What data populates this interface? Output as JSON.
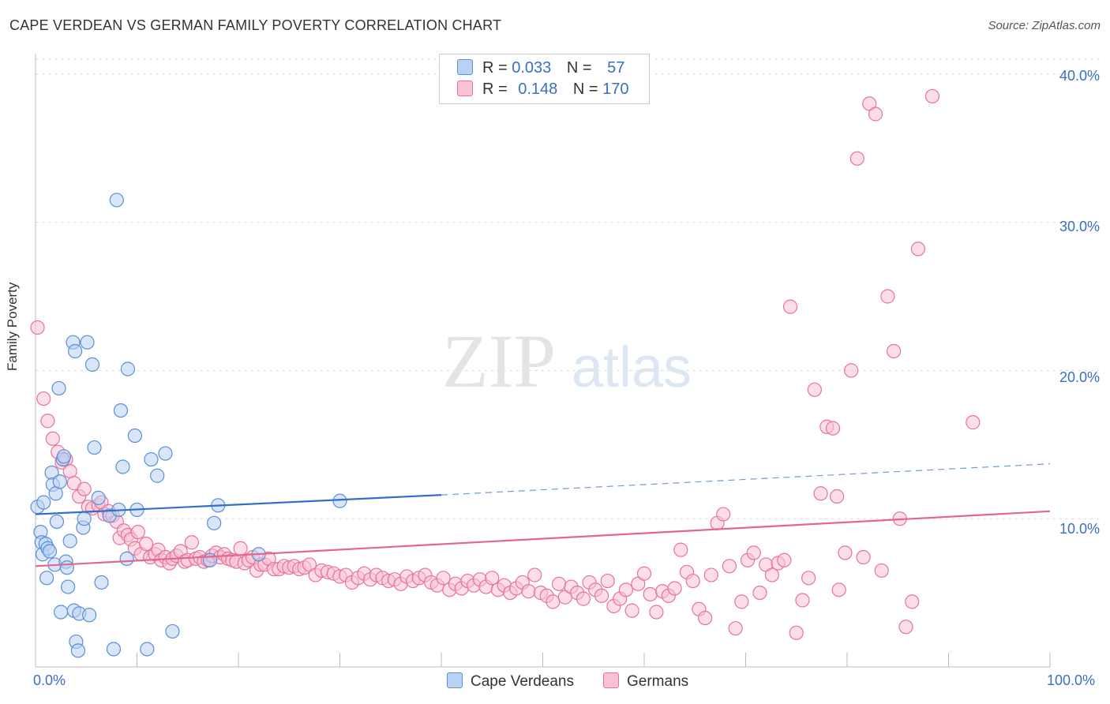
{
  "title": "CAPE VERDEAN VS GERMAN FAMILY POVERTY CORRELATION CHART",
  "source": "Source: ZipAtlas.com",
  "watermark": {
    "zip": "ZIP",
    "atlas": "atlas"
  },
  "colors": {
    "blue": "#5b8fd6",
    "blue_fill": "#b9d2f3",
    "pink": "#e8739a",
    "pink_fill": "#f7c3d4",
    "tick_text": "#3a6fc4",
    "grid": "#dddddd"
  },
  "legend": {
    "rows": [
      {
        "r_label": "R =",
        "r_value": "0.033",
        "n_label": "N =",
        "n_value": "57"
      },
      {
        "r_label": "R =",
        "r_value": "0.148",
        "n_label": "N =",
        "n_value": "170"
      }
    ]
  },
  "bottom_legend": [
    "Cape Verdeans",
    "Germans"
  ],
  "chart_data": {
    "type": "scatter",
    "title": "CAPE VERDEAN VS GERMAN FAMILY POVERTY CORRELATION CHART",
    "xlabel": "",
    "ylabel": "Family Poverty",
    "xlim": [
      0,
      100
    ],
    "ylim": [
      0,
      41
    ],
    "x_tick_labels": [
      "0.0%",
      "100.0%"
    ],
    "y_ticks": [
      10,
      20,
      30,
      40
    ],
    "y_tick_labels": [
      "10.0%",
      "20.0%",
      "30.0%",
      "40.0%"
    ],
    "grid": "horizontal dashed",
    "legend_position": "top-center",
    "series": [
      {
        "name": "Cape Verdeans",
        "trend": {
          "x": [
            0,
            40,
            100
          ],
          "y": [
            10.3,
            11.6,
            13.7
          ],
          "solid_until": 40
        },
        "points": [
          [
            0.2,
            10.8
          ],
          [
            0.5,
            9.1
          ],
          [
            0.6,
            8.4
          ],
          [
            0.7,
            7.6
          ],
          [
            0.8,
            11.1
          ],
          [
            1.0,
            8.3
          ],
          [
            1.1,
            6.0
          ],
          [
            1.2,
            8.0
          ],
          [
            1.4,
            7.8
          ],
          [
            1.6,
            13.1
          ],
          [
            1.7,
            12.3
          ],
          [
            1.9,
            6.9
          ],
          [
            2.0,
            11.7
          ],
          [
            2.1,
            9.8
          ],
          [
            2.3,
            18.8
          ],
          [
            2.4,
            12.5
          ],
          [
            2.5,
            3.7
          ],
          [
            2.7,
            14.0
          ],
          [
            2.8,
            14.2
          ],
          [
            3.0,
            7.1
          ],
          [
            3.1,
            6.7
          ],
          [
            3.2,
            5.4
          ],
          [
            3.4,
            8.5
          ],
          [
            3.7,
            21.9
          ],
          [
            3.8,
            3.8
          ],
          [
            3.9,
            21.3
          ],
          [
            4.0,
            1.7
          ],
          [
            4.2,
            1.1
          ],
          [
            4.3,
            3.6
          ],
          [
            4.7,
            9.4
          ],
          [
            4.8,
            10.0
          ],
          [
            5.1,
            21.9
          ],
          [
            5.3,
            3.5
          ],
          [
            5.6,
            20.4
          ],
          [
            5.8,
            14.8
          ],
          [
            6.2,
            11.4
          ],
          [
            6.5,
            5.7
          ],
          [
            7.3,
            10.2
          ],
          [
            7.7,
            1.2
          ],
          [
            8.0,
            31.5
          ],
          [
            8.2,
            10.6
          ],
          [
            8.4,
            17.3
          ],
          [
            8.6,
            13.5
          ],
          [
            9.0,
            7.3
          ],
          [
            9.1,
            20.1
          ],
          [
            9.8,
            15.6
          ],
          [
            10.0,
            10.6
          ],
          [
            11.0,
            1.2
          ],
          [
            11.4,
            14.0
          ],
          [
            12.0,
            12.9
          ],
          [
            12.8,
            14.4
          ],
          [
            13.5,
            2.4
          ],
          [
            17.2,
            7.2
          ],
          [
            17.6,
            9.7
          ],
          [
            18.0,
            10.9
          ],
          [
            22.0,
            7.6
          ],
          [
            30.0,
            11.2
          ]
        ]
      },
      {
        "name": "Germans",
        "trend": {
          "x": [
            0,
            100
          ],
          "y": [
            6.8,
            10.5
          ]
        },
        "points": [
          [
            0.2,
            22.9
          ],
          [
            0.8,
            18.1
          ],
          [
            1.2,
            16.6
          ],
          [
            1.7,
            15.4
          ],
          [
            2.2,
            14.5
          ],
          [
            2.6,
            13.8
          ],
          [
            3.0,
            14.0
          ],
          [
            3.4,
            13.2
          ],
          [
            3.8,
            12.4
          ],
          [
            4.3,
            11.5
          ],
          [
            4.8,
            12.0
          ],
          [
            5.2,
            10.8
          ],
          [
            5.6,
            10.7
          ],
          [
            6.2,
            10.9
          ],
          [
            6.5,
            11.1
          ],
          [
            6.8,
            10.3
          ],
          [
            7.2,
            10.5
          ],
          [
            7.6,
            10.2
          ],
          [
            8.0,
            9.8
          ],
          [
            8.3,
            8.7
          ],
          [
            8.7,
            9.2
          ],
          [
            9.1,
            8.9
          ],
          [
            9.4,
            8.6
          ],
          [
            9.8,
            8.0
          ],
          [
            10.1,
            9.1
          ],
          [
            10.4,
            7.6
          ],
          [
            10.9,
            8.3
          ],
          [
            11.3,
            7.4
          ],
          [
            11.8,
            7.6
          ],
          [
            12.1,
            7.9
          ],
          [
            12.4,
            7.2
          ],
          [
            12.8,
            7.4
          ],
          [
            13.2,
            7.0
          ],
          [
            13.5,
            7.3
          ],
          [
            13.9,
            7.5
          ],
          [
            14.3,
            7.8
          ],
          [
            14.7,
            7.1
          ],
          [
            15.0,
            7.2
          ],
          [
            15.4,
            8.4
          ],
          [
            15.8,
            7.3
          ],
          [
            16.2,
            7.4
          ],
          [
            16.6,
            7.1
          ],
          [
            17.0,
            7.2
          ],
          [
            17.4,
            7.5
          ],
          [
            17.8,
            7.7
          ],
          [
            18.2,
            7.4
          ],
          [
            18.6,
            7.6
          ],
          [
            19.0,
            7.3
          ],
          [
            19.4,
            7.2
          ],
          [
            19.8,
            7.1
          ],
          [
            20.2,
            8.0
          ],
          [
            20.6,
            7.0
          ],
          [
            21.0,
            7.2
          ],
          [
            21.4,
            7.4
          ],
          [
            21.8,
            6.5
          ],
          [
            22.2,
            6.9
          ],
          [
            22.6,
            6.9
          ],
          [
            23.0,
            7.3
          ],
          [
            23.5,
            6.6
          ],
          [
            24.0,
            6.6
          ],
          [
            24.5,
            6.8
          ],
          [
            25.0,
            6.7
          ],
          [
            25.5,
            6.8
          ],
          [
            26.0,
            6.6
          ],
          [
            26.5,
            6.7
          ],
          [
            27.0,
            6.9
          ],
          [
            27.6,
            6.2
          ],
          [
            28.2,
            6.5
          ],
          [
            28.8,
            6.4
          ],
          [
            29.4,
            6.3
          ],
          [
            30.0,
            6.1
          ],
          [
            30.6,
            6.2
          ],
          [
            31.2,
            5.7
          ],
          [
            31.8,
            6.0
          ],
          [
            32.4,
            6.3
          ],
          [
            33.0,
            5.9
          ],
          [
            33.6,
            6.2
          ],
          [
            34.2,
            6.0
          ],
          [
            34.8,
            5.8
          ],
          [
            35.4,
            5.9
          ],
          [
            36.0,
            5.6
          ],
          [
            36.6,
            6.1
          ],
          [
            37.2,
            5.8
          ],
          [
            37.8,
            6.0
          ],
          [
            38.4,
            6.2
          ],
          [
            39.0,
            5.7
          ],
          [
            39.6,
            5.5
          ],
          [
            40.2,
            6.0
          ],
          [
            40.8,
            5.2
          ],
          [
            41.4,
            5.6
          ],
          [
            42.0,
            5.3
          ],
          [
            42.6,
            5.8
          ],
          [
            43.2,
            5.5
          ],
          [
            43.8,
            5.9
          ],
          [
            44.4,
            5.4
          ],
          [
            45.0,
            6.0
          ],
          [
            45.6,
            5.2
          ],
          [
            46.2,
            5.5
          ],
          [
            46.8,
            5.0
          ],
          [
            47.4,
            5.3
          ],
          [
            48.0,
            5.7
          ],
          [
            48.6,
            5.1
          ],
          [
            49.2,
            6.2
          ],
          [
            49.8,
            5.0
          ],
          [
            50.4,
            4.8
          ],
          [
            51.0,
            4.4
          ],
          [
            51.6,
            5.6
          ],
          [
            52.2,
            4.7
          ],
          [
            52.8,
            5.4
          ],
          [
            53.4,
            5.0
          ],
          [
            54.0,
            4.6
          ],
          [
            54.6,
            5.7
          ],
          [
            55.2,
            5.2
          ],
          [
            55.8,
            4.8
          ],
          [
            56.4,
            5.8
          ],
          [
            57.0,
            4.1
          ],
          [
            57.6,
            4.6
          ],
          [
            58.2,
            5.2
          ],
          [
            58.8,
            3.8
          ],
          [
            59.4,
            5.6
          ],
          [
            60.0,
            6.3
          ],
          [
            60.6,
            4.9
          ],
          [
            61.2,
            3.7
          ],
          [
            61.8,
            5.1
          ],
          [
            62.4,
            4.8
          ],
          [
            63.0,
            5.3
          ],
          [
            63.6,
            7.9
          ],
          [
            64.2,
            6.4
          ],
          [
            64.8,
            5.8
          ],
          [
            65.4,
            3.9
          ],
          [
            66.0,
            3.3
          ],
          [
            66.6,
            6.2
          ],
          [
            67.2,
            9.7
          ],
          [
            67.8,
            10.3
          ],
          [
            68.4,
            6.8
          ],
          [
            69.0,
            2.6
          ],
          [
            69.6,
            4.4
          ],
          [
            70.2,
            7.2
          ],
          [
            70.8,
            7.7
          ],
          [
            71.4,
            5.0
          ],
          [
            72.0,
            6.9
          ],
          [
            72.6,
            6.2
          ],
          [
            73.2,
            7.0
          ],
          [
            73.8,
            7.2
          ],
          [
            74.4,
            24.3
          ],
          [
            75.0,
            2.3
          ],
          [
            75.6,
            4.5
          ],
          [
            76.2,
            6.0
          ],
          [
            76.8,
            18.7
          ],
          [
            77.4,
            11.7
          ],
          [
            78.0,
            16.2
          ],
          [
            78.6,
            16.1
          ],
          [
            79.2,
            5.2
          ],
          [
            79.8,
            7.7
          ],
          [
            80.4,
            20.0
          ],
          [
            81.0,
            34.3
          ],
          [
            81.6,
            7.4
          ],
          [
            82.2,
            38.0
          ],
          [
            82.8,
            37.3
          ],
          [
            83.4,
            6.5
          ],
          [
            84.0,
            25.0
          ],
          [
            84.6,
            21.3
          ],
          [
            85.2,
            10.0
          ],
          [
            85.8,
            2.7
          ],
          [
            86.4,
            4.4
          ],
          [
            87.0,
            28.2
          ],
          [
            88.4,
            38.5
          ],
          [
            92.4,
            16.5
          ],
          [
            79.0,
            11.5
          ]
        ]
      }
    ]
  }
}
